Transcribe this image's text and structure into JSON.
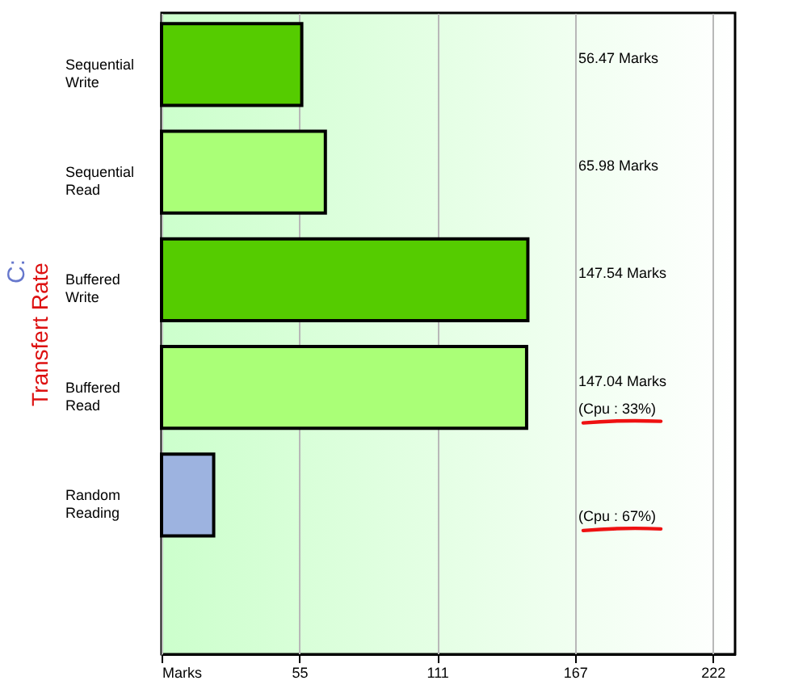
{
  "chart_data": {
    "type": "bar",
    "orientation": "horizontal",
    "title": "C:",
    "ylabel": "Transfert Rate",
    "categories": [
      "Sequential Write",
      "Sequential Read",
      "Buffered Write",
      "Buffered Read",
      "Random Reading",
      null
    ],
    "values": [
      56.47,
      65.98,
      147.54,
      147.04,
      21,
      null
    ],
    "colors": [
      "#55cc00",
      "#aaff77",
      "#55cc00",
      "#aaff77",
      "#9db3e0",
      "#9db3e0"
    ],
    "annotations": [
      "56.47 Marks",
      "65.98 Marks",
      "147.54 Marks",
      "147.04 Marks",
      "(Cpu : 33%)",
      "(Cpu : 67%)"
    ],
    "xlim": [
      0,
      231
    ],
    "xticks": [
      {
        "value": 0,
        "label": "Marks"
      },
      {
        "value": 55.5,
        "label": "55"
      },
      111,
      {
        "value": 166.5,
        "label": "167"
      },
      222
    ],
    "grid": "x"
  }
}
